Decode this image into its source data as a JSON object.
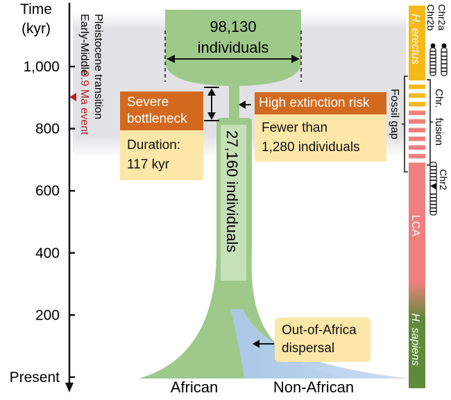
{
  "axis": {
    "title_line1": "Time",
    "title_line2": "(kyr)",
    "ticks": [
      {
        "label": "1,000",
        "value": 1000
      },
      {
        "label": "800",
        "value": 800
      },
      {
        "label": "600",
        "value": 600
      },
      {
        "label": "400",
        "value": 400
      },
      {
        "label": "200",
        "value": 200
      },
      {
        "label": "Present",
        "value": 0
      }
    ]
  },
  "transition": {
    "line1": "Early-Middle",
    "line2": "Pleistocene transition"
  },
  "event": {
    "label": "0.9 Ma event",
    "color": "#b22222",
    "value_kyr": 900
  },
  "ancestral_population": {
    "line1": "98,130",
    "line2": "individuals"
  },
  "bottleneck_population": {
    "label": "27,160 individuals"
  },
  "severe_box": {
    "head_line1": "Severe",
    "head_line2": "bottleneck",
    "body_line1": "Duration:",
    "body_line2": "117 kyr"
  },
  "risk_box": {
    "head": "High extinction risk",
    "body_line1": "Fewer than",
    "body_line2": "1,280 individuals"
  },
  "dispersal_box": {
    "line1": "Out-of-Africa",
    "line2": "dispersal"
  },
  "bottom_labels": {
    "african": "African",
    "non_african": "Non-African"
  },
  "species_bar": {
    "erectus": "H. erectus",
    "lca": "LCA",
    "sapiens": "H. sapiens"
  },
  "fossil_gap": {
    "label": "Fossil gap"
  },
  "chromosome_labels": {
    "chr2a": "Chr2a",
    "chr2b": "Chr2b",
    "fusion_line1": "Chr.",
    "fusion_line2": "fusion",
    "chr2": "Chr2"
  },
  "colors": {
    "african_green": "#9ec98b",
    "nonafrican_blue": "#a9c8ea",
    "orange_head": "#d2691e",
    "yellow_body": "#fde7a8",
    "erectus_bar": "#f5b91a",
    "lca_bar": "#f08080",
    "sapiens_bar": "#5e8a3a",
    "band_gray": "#e2e2e6"
  }
}
